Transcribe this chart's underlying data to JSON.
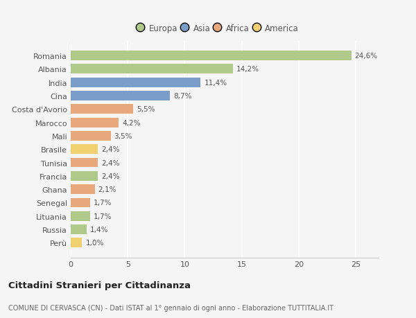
{
  "categories": [
    "Romania",
    "Albania",
    "India",
    "Cina",
    "Costa d'Avorio",
    "Marocco",
    "Mali",
    "Brasile",
    "Tunisia",
    "Francia",
    "Ghana",
    "Senegal",
    "Lituania",
    "Russia",
    "Perù"
  ],
  "values": [
    24.6,
    14.2,
    11.4,
    8.7,
    5.5,
    4.2,
    3.5,
    2.4,
    2.4,
    2.4,
    2.1,
    1.7,
    1.7,
    1.4,
    1.0
  ],
  "labels": [
    "24,6%",
    "14,2%",
    "11,4%",
    "8,7%",
    "5,5%",
    "4,2%",
    "3,5%",
    "2,4%",
    "2,4%",
    "2,4%",
    "2,1%",
    "1,7%",
    "1,7%",
    "1,4%",
    "1,0%"
  ],
  "colors": [
    "#aec98a",
    "#aec98a",
    "#7b9dc9",
    "#7b9dc9",
    "#e8a87c",
    "#e8a87c",
    "#e8a87c",
    "#f0d070",
    "#e8a87c",
    "#aec98a",
    "#e8a87c",
    "#e8a87c",
    "#aec98a",
    "#aec98a",
    "#f0d070"
  ],
  "legend_labels": [
    "Europa",
    "Asia",
    "Africa",
    "America"
  ],
  "legend_colors": [
    "#aec98a",
    "#7b9dc9",
    "#e8a87c",
    "#f0d070"
  ],
  "title": "Cittadini Stranieri per Cittadinanza",
  "subtitle": "COMUNE DI CERVASCA (CN) - Dati ISTAT al 1° gennaio di ogni anno - Elaborazione TUTTITALIA.IT",
  "xlim": [
    0,
    27
  ],
  "background_color": "#f5f5f5",
  "grid_color": "#ffffff",
  "bar_height": 0.72
}
